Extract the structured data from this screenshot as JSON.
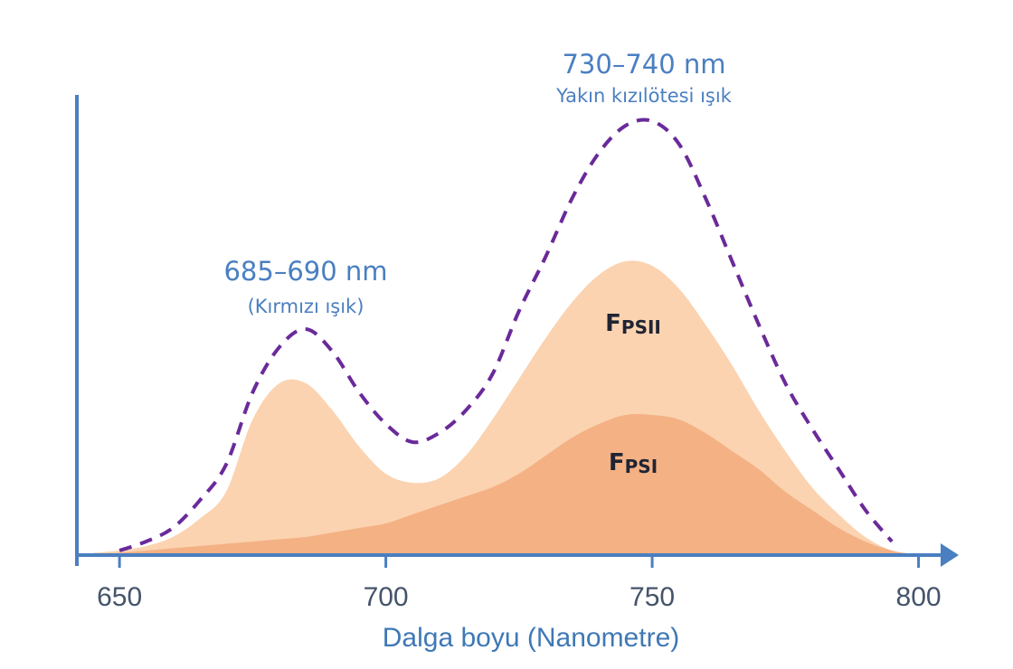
{
  "chart_data": {
    "type": "area",
    "x_label": "Dalga boyu (Nanometre)",
    "x": [
      645,
      650,
      655,
      660,
      665,
      670,
      675,
      680,
      685,
      690,
      695,
      700,
      705,
      710,
      715,
      720,
      725,
      730,
      735,
      740,
      745,
      750,
      755,
      760,
      765,
      770,
      775,
      780,
      785,
      790,
      795,
      800
    ],
    "series": [
      {
        "name": "FPSII",
        "color": "#fbd3b0",
        "values": [
          0.5,
          1,
          2,
          4,
          8,
          14,
          30,
          38,
          38,
          32,
          24,
          18,
          16,
          17,
          22,
          30,
          39,
          48,
          56,
          62,
          65,
          64,
          59,
          51,
          42,
          32,
          23,
          15,
          9,
          4,
          1,
          0
        ]
      },
      {
        "name": "FPSI",
        "color": "#f4b184",
        "values": [
          0,
          0.5,
          1,
          1.5,
          2,
          2.5,
          3,
          3.5,
          4,
          5,
          6,
          7,
          9,
          11,
          13,
          15,
          18,
          22,
          26,
          29,
          31,
          31,
          30,
          27,
          23,
          19,
          14,
          10,
          6,
          3,
          1,
          0
        ]
      },
      {
        "type": "line",
        "dashed": true,
        "color": "#6a2a9a",
        "values": [
          null,
          1,
          3,
          6,
          12,
          20,
          36,
          46,
          50,
          45,
          36,
          29,
          25,
          27,
          32,
          40,
          54,
          66,
          79,
          89,
          95,
          96,
          91,
          79,
          65,
          51,
          38,
          28,
          19,
          10,
          3,
          null
        ]
      }
    ],
    "annotations": [
      {
        "text": "685–690 nm",
        "subtext": "(Kırmızı ışık)"
      },
      {
        "text": "730–740 nm",
        "subtext": "Yakın kızılötesi ışık"
      }
    ],
    "xlim": [
      642,
      805
    ],
    "xticks": [
      650,
      700,
      750,
      800
    ],
    "ylim": [
      0,
      100
    ],
    "axis_color": "#4a7fc1"
  }
}
